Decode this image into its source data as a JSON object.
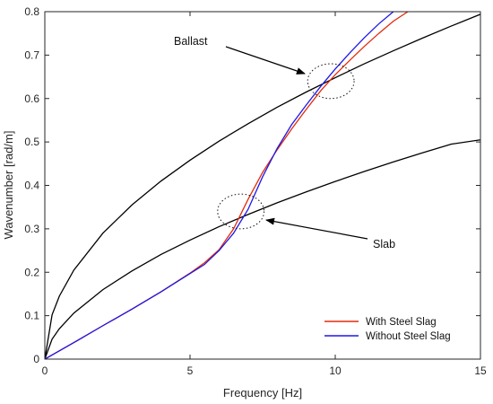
{
  "chart_data": {
    "type": "line",
    "xlabel": "Frequency [Hz]",
    "ylabel": "Wavenumber [rad/m]",
    "xlim": [
      0,
      15
    ],
    "ylim": [
      0,
      0.8
    ],
    "xticks": [
      0,
      5,
      10,
      15
    ],
    "yticks": [
      0,
      0.1,
      0.2,
      0.3,
      0.4,
      0.5,
      0.6,
      0.7,
      0.8
    ],
    "grid": false,
    "legend_position": "bottom-right",
    "colors": {
      "reference": "#000000",
      "with": "#e02b0c",
      "without": "#1f18e6",
      "axis": "#262626"
    },
    "reference_curves": [
      {
        "label": "Ballast",
        "x": [
          0,
          0.25,
          0.5,
          1,
          2,
          3,
          4,
          5,
          6,
          7,
          8,
          9,
          10,
          11,
          12,
          13,
          14,
          15
        ],
        "y": [
          0,
          0.102,
          0.145,
          0.205,
          0.29,
          0.355,
          0.41,
          0.458,
          0.502,
          0.542,
          0.58,
          0.615,
          0.648,
          0.68,
          0.71,
          0.739,
          0.767,
          0.794
        ]
      },
      {
        "label": "Slab",
        "x": [
          0,
          0.25,
          0.5,
          1,
          2,
          3,
          4,
          5,
          6,
          7,
          8,
          9,
          10,
          11,
          12,
          13,
          14,
          15
        ],
        "y": [
          0,
          0.046,
          0.07,
          0.106,
          0.16,
          0.203,
          0.241,
          0.274,
          0.305,
          0.333,
          0.36,
          0.385,
          0.409,
          0.432,
          0.454,
          0.475,
          0.495,
          0.505
        ]
      }
    ],
    "series": [
      {
        "name": "With Steel Slag",
        "x": [
          0,
          1,
          2,
          3,
          4,
          5,
          5.5,
          6,
          6.5,
          7,
          7.5,
          8,
          8.5,
          9,
          9.5,
          10,
          10.5,
          11,
          11.5,
          12,
          12.5
        ],
        "y": [
          0,
          0.038,
          0.077,
          0.115,
          0.155,
          0.198,
          0.222,
          0.252,
          0.3,
          0.368,
          0.43,
          0.482,
          0.53,
          0.575,
          0.618,
          0.655,
          0.688,
          0.72,
          0.75,
          0.778,
          0.8
        ]
      },
      {
        "name": "Without Steel Slag",
        "x": [
          0,
          1,
          2,
          3,
          4,
          5,
          5.5,
          6,
          6.5,
          7,
          7.5,
          8,
          8.5,
          9,
          9.5,
          10,
          10.5,
          11,
          11.5,
          12
        ],
        "y": [
          0,
          0.038,
          0.077,
          0.115,
          0.155,
          0.197,
          0.218,
          0.25,
          0.29,
          0.345,
          0.42,
          0.485,
          0.54,
          0.585,
          0.628,
          0.668,
          0.705,
          0.74,
          0.772,
          0.8
        ]
      }
    ],
    "annotations": [
      {
        "text": "Ballast",
        "ellipse_center": [
          9.85,
          0.64
        ],
        "ellipse_radius": [
          0.8,
          0.04
        ],
        "text_anchor_data": [
          6.45,
          0.725
        ]
      },
      {
        "text": "Slab",
        "ellipse_center": [
          6.75,
          0.34
        ],
        "ellipse_radius": [
          0.8,
          0.04
        ],
        "text_anchor_data": [
          11.1,
          0.265
        ]
      }
    ]
  }
}
